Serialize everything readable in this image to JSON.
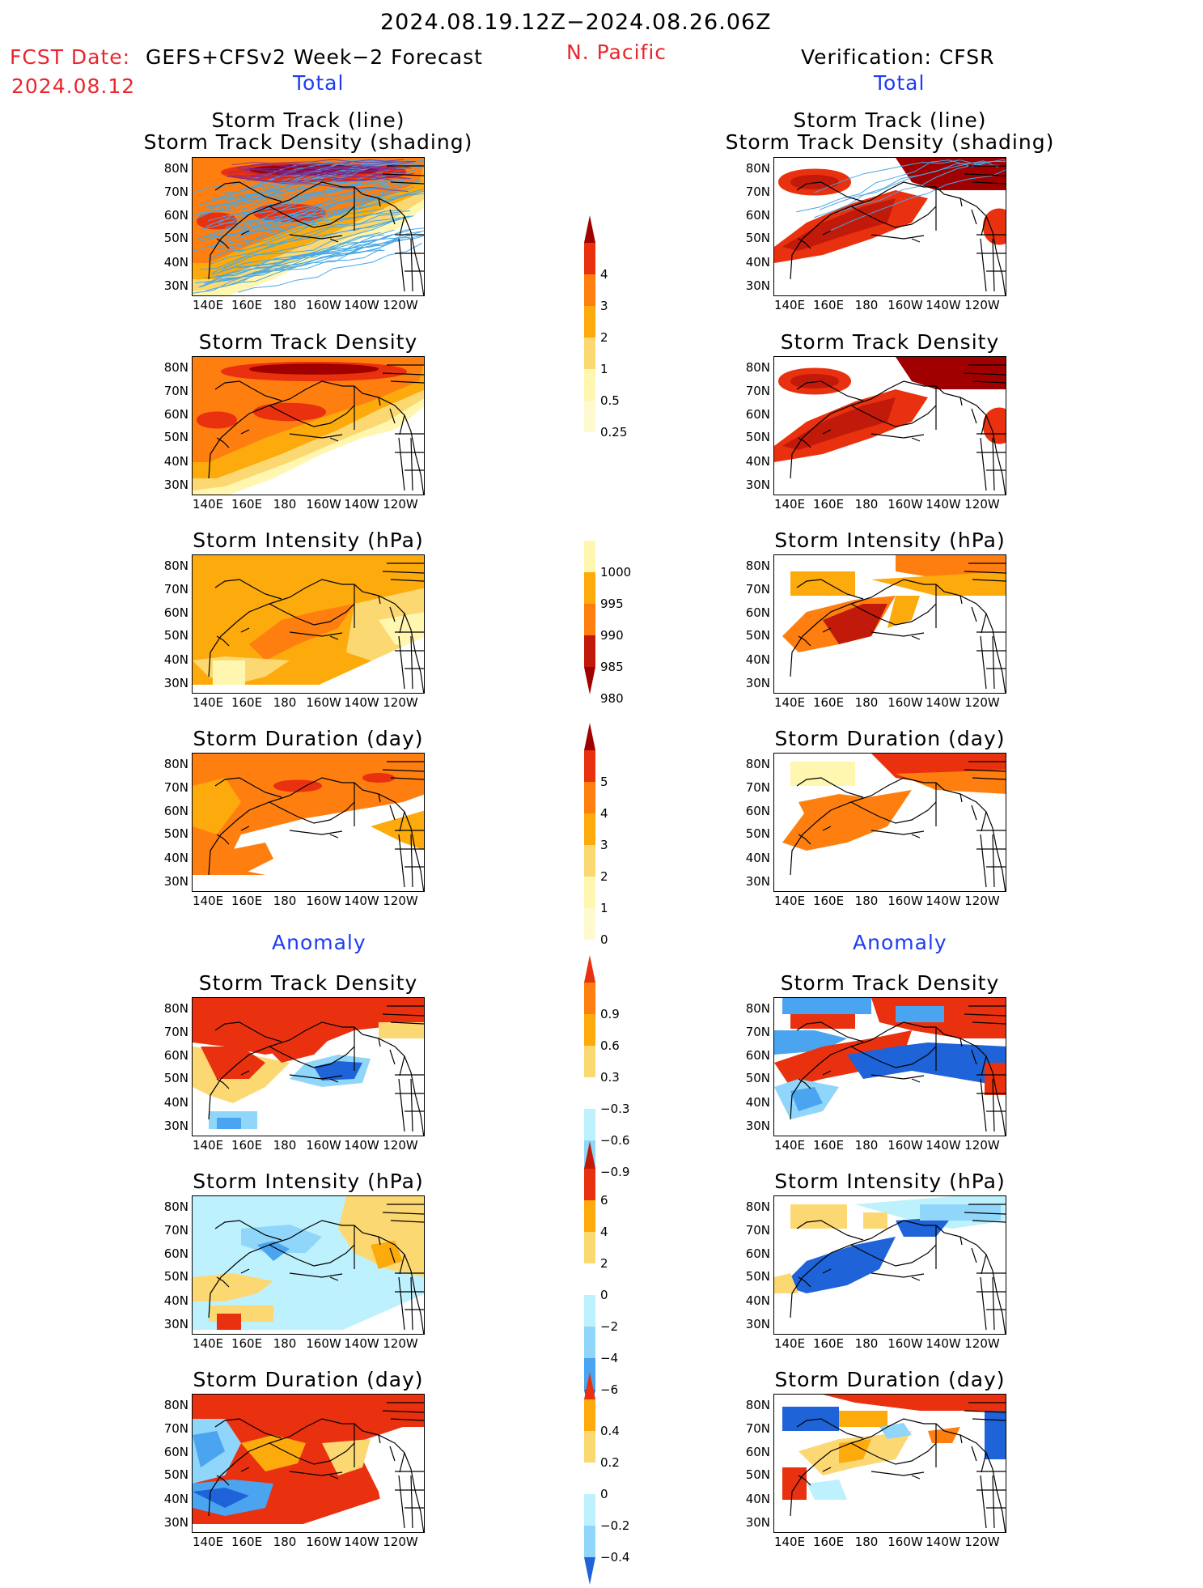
{
  "header": {
    "period": "2024.08.19.12Z−2024.08.26.06Z",
    "fcst_prefix": "FCST Date:",
    "fcst_model": "GEFS+CFSv2 Week−2 Forecast",
    "fcst_date": "2024.08.12",
    "region": "N. Pacific",
    "verification": "Verification: CFSR"
  },
  "sections": {
    "total": "Total",
    "anomaly": "Anomaly"
  },
  "panel_titles": {
    "track_line": "Storm Track (line)",
    "track_shading": "Storm Track Density (shading)",
    "density": "Storm Track Density",
    "intensity": "Storm Intensity (hPa)",
    "duration": "Storm Duration (day)"
  },
  "axes": {
    "lat_labels": [
      "80N",
      "70N",
      "60N",
      "50N",
      "40N",
      "30N"
    ],
    "lon_labels": [
      "140E",
      "160E",
      "180",
      "160W",
      "140W",
      "120W"
    ]
  },
  "colorbars": {
    "density_total": [
      "4",
      "3",
      "2",
      "1",
      "0.5",
      "0.25"
    ],
    "intensity_total": [
      "1000",
      "995",
      "990",
      "985",
      "980"
    ],
    "duration_total": [
      "5",
      "4",
      "3",
      "2",
      "1",
      "0"
    ],
    "density_anom": [
      "0.9",
      "0.6",
      "0.3",
      "−0.3",
      "−0.6",
      "−0.9"
    ],
    "intensity_anom": [
      "6",
      "4",
      "2",
      "0",
      "−2",
      "−4",
      "−6"
    ],
    "duration_anom": [
      "0.4",
      "0.2",
      "0",
      "−0.2",
      "−0.4"
    ]
  },
  "colors": {
    "warm": [
      "#fff6b0",
      "#fcd872",
      "#fdaa0c",
      "#fe7f10",
      "#e9310f",
      "#c21a0a",
      "#a00000"
    ],
    "cool": [
      "#bdf1fd",
      "#8fd6fa",
      "#4aa4f0",
      "#1e63d8"
    ],
    "track_line": "#46a8e6"
  }
}
